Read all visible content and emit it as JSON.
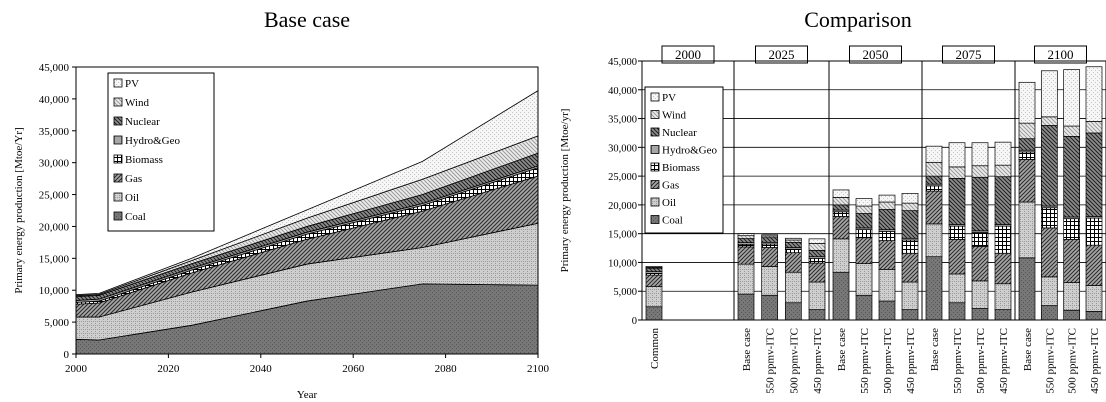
{
  "chart_data": [
    {
      "type": "area",
      "stacked": true,
      "title": "Base case",
      "xlabel": "Year",
      "ylabel": "Primary energy production [Mtoe/Yr]",
      "xlim": [
        2000,
        2100
      ],
      "ylim": [
        0,
        45000
      ],
      "x_ticks": [
        "2000",
        "2020",
        "2040",
        "2060",
        "2080",
        "2100"
      ],
      "y_ticks": [
        "0",
        "5,000",
        "10,000",
        "15,000",
        "20,000",
        "25,000",
        "30,000",
        "35,000",
        "40,000",
        "45,000"
      ],
      "legend_position": "top-left",
      "x": [
        2000,
        2005,
        2025,
        2050,
        2075,
        2100
      ],
      "series": [
        {
          "name": "Coal",
          "values": [
            2300,
            2200,
            4500,
            8300,
            11000,
            10800
          ]
        },
        {
          "name": "Oil",
          "values": [
            3500,
            3600,
            5200,
            5800,
            5700,
            9700
          ]
        },
        {
          "name": "Gas",
          "values": [
            2000,
            2200,
            3000,
            3900,
            5700,
            7400
          ]
        },
        {
          "name": "Biomass",
          "values": [
            300,
            300,
            450,
            800,
            900,
            1300
          ]
        },
        {
          "name": "Hydro&Geo",
          "values": [
            300,
            300,
            300,
            300,
            300,
            300
          ]
        },
        {
          "name": "Nuclear",
          "values": [
            600,
            600,
            700,
            900,
            1400,
            2000
          ]
        },
        {
          "name": "Wind",
          "values": [
            150,
            150,
            500,
            1300,
            2400,
            2700
          ]
        },
        {
          "name": "PV",
          "values": [
            150,
            150,
            350,
            1300,
            2800,
            7100
          ]
        }
      ]
    },
    {
      "type": "bar",
      "stacked": true,
      "title": "Comparison",
      "xlabel": "",
      "ylabel": "Primary energy production [Mtoe/yr]",
      "ylim": [
        0,
        45000
      ],
      "y_ticks": [
        "0",
        "5,000",
        "10,000",
        "15,000",
        "20,000",
        "25,000",
        "30,000",
        "35,000",
        "40,000",
        "45,000"
      ],
      "legend_position": "top-left",
      "groups": [
        {
          "label": "2000",
          "categories": [
            "Common"
          ]
        },
        {
          "label": "2025",
          "categories": [
            "Base case",
            "550 ppmv-ITC",
            "500 ppmv-ITC",
            "450 ppmv-ITC"
          ]
        },
        {
          "label": "2050",
          "categories": [
            "Base case",
            "550 ppmv-ITC",
            "500 ppmv-ITC",
            "450 ppmv-ITC"
          ]
        },
        {
          "label": "2075",
          "categories": [
            "Base case",
            "550 ppmv-ITC",
            "500 ppmv-ITC",
            "450 ppmv-ITC"
          ]
        },
        {
          "label": "2100",
          "categories": [
            "Base case",
            "550 ppmv-ITC",
            "500 ppmv-ITC",
            "450 ppmv-ITC"
          ]
        }
      ],
      "series_names": [
        "Coal",
        "Oil",
        "Gas",
        "Biomass",
        "Hydro&Geo",
        "Nuclear",
        "Wind",
        "PV"
      ],
      "bars": [
        [
          2300,
          3500,
          2000,
          300,
          300,
          600,
          150,
          150
        ],
        [
          4500,
          5200,
          3000,
          450,
          300,
          700,
          500,
          350
        ],
        [
          4300,
          5000,
          3300,
          600,
          300,
          800,
          300,
          200
        ],
        [
          3000,
          5300,
          3400,
          600,
          300,
          900,
          400,
          300
        ],
        [
          1800,
          4800,
          3300,
          800,
          300,
          1100,
          1200,
          800
        ],
        [
          8300,
          5800,
          3900,
          800,
          300,
          900,
          1300,
          1300
        ],
        [
          4300,
          5500,
          4500,
          1400,
          300,
          2500,
          1300,
          1300
        ],
        [
          3300,
          5500,
          5000,
          1600,
          300,
          3500,
          1300,
          1200
        ],
        [
          1800,
          4800,
          5000,
          2300,
          300,
          4800,
          1300,
          1700
        ],
        [
          11000,
          5700,
          5700,
          900,
          300,
          1400,
          2400,
          2800
        ],
        [
          3000,
          5000,
          6000,
          2300,
          300,
          8000,
          2000,
          4200
        ],
        [
          2000,
          4800,
          6000,
          2400,
          300,
          9300,
          2000,
          4000
        ],
        [
          1800,
          4500,
          5300,
          4700,
          300,
          8300,
          2000,
          4000
        ],
        [
          10800,
          9700,
          7400,
          1300,
          300,
          2000,
          2700,
          7100
        ],
        [
          2500,
          5000,
          8500,
          3500,
          300,
          14000,
          1500,
          8000
        ],
        [
          1700,
          4800,
          7500,
          3600,
          300,
          14000,
          1800,
          9800
        ],
        [
          1500,
          4500,
          7000,
          4700,
          300,
          14500,
          2000,
          9500
        ]
      ]
    }
  ]
}
